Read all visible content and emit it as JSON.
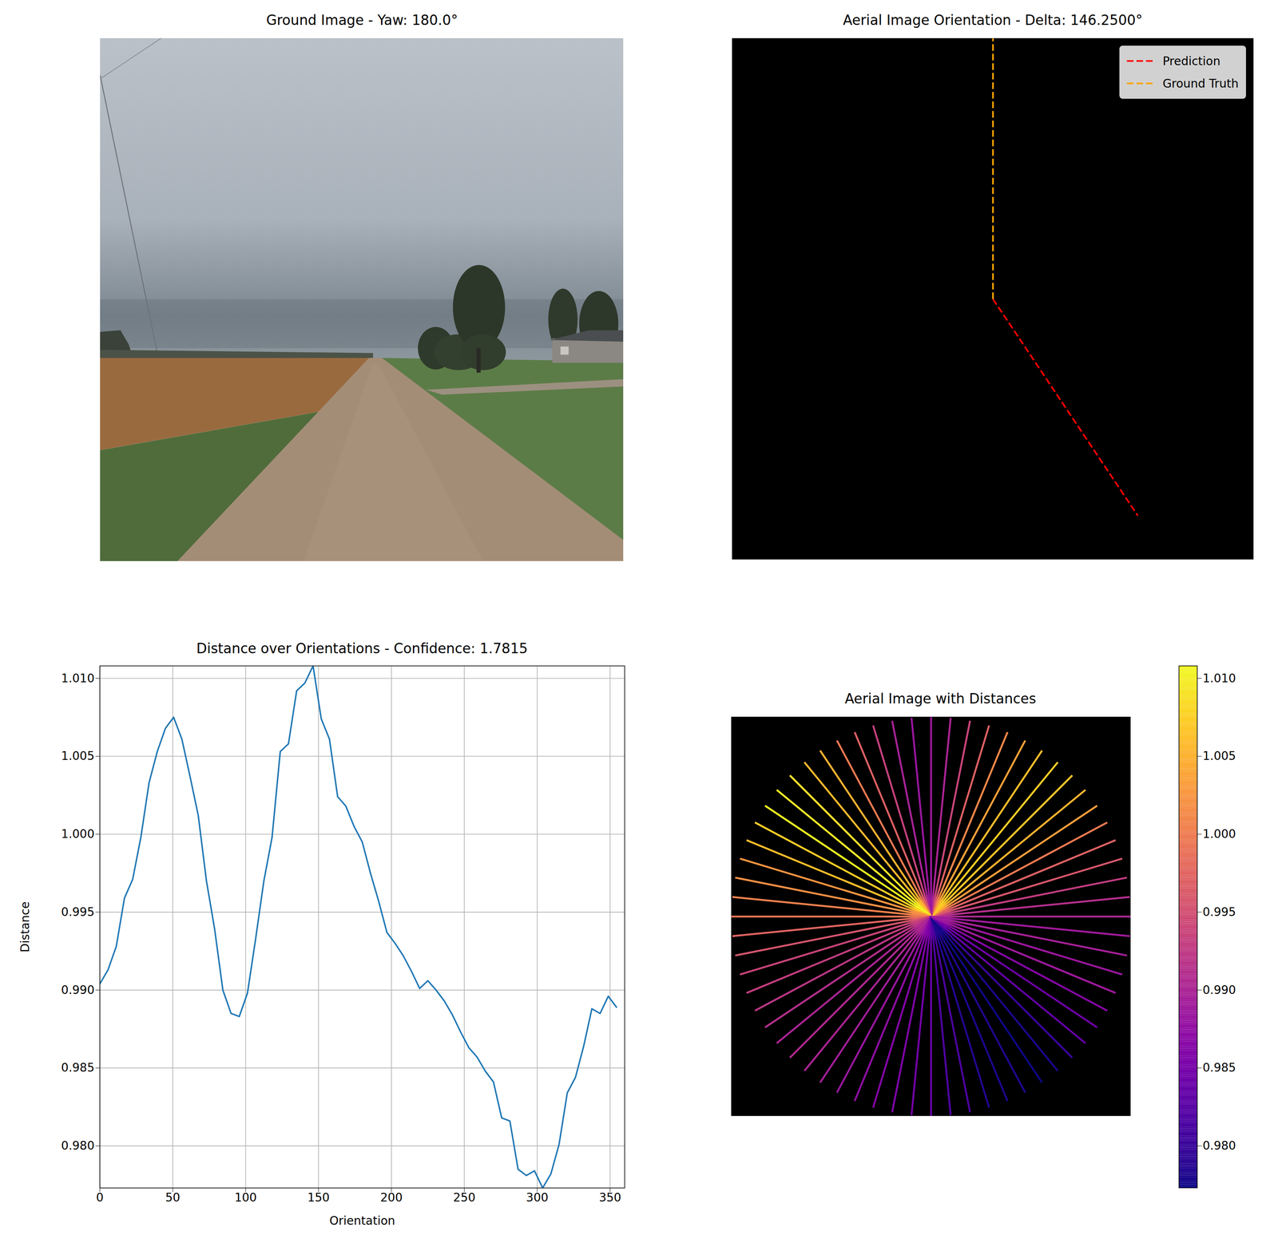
{
  "chart_data": [
    {
      "type": "image",
      "title": "Ground Image - Yaw: 180.0°"
    },
    {
      "type": "orientation",
      "title": "Aerial Image Orientation - Delta: 146.2500°",
      "legend": "upper right",
      "tick_labels": false,
      "series": [
        {
          "name": "Prediction",
          "color": "red",
          "line_style": "dashed",
          "angle": 146.25
        },
        {
          "name": "Ground Truth",
          "color": "orange",
          "line_style": "dashed",
          "angle": 0
        }
      ]
    },
    {
      "type": "line",
      "title": "Distance over Orientations - Confidence: 1.7815",
      "x_label": "Orientation",
      "y_label": "Distance",
      "color": "#1f77b4",
      "grid": true,
      "x": [
        0,
        5.625,
        11.25,
        16.875,
        22.5,
        28.125,
        33.75,
        39.375,
        45,
        50.625,
        56.25,
        61.875,
        67.5,
        73.125,
        78.75,
        84.375,
        90,
        95.625,
        101.25,
        106.875,
        112.5,
        118.125,
        123.75,
        129.375,
        135,
        140.625,
        146.25,
        151.875,
        157.5,
        163.125,
        168.75,
        174.375,
        180,
        185.625,
        191.25,
        196.875,
        202.5,
        208.125,
        213.75,
        219.375,
        225,
        230.625,
        236.25,
        241.875,
        247.5,
        253.125,
        258.75,
        264.375,
        270,
        275.625,
        281.25,
        286.875,
        292.5,
        298.125,
        303.75,
        309.375,
        315,
        320.625,
        326.25,
        331.875,
        337.5,
        343.125,
        348.75,
        354.375
      ],
      "values": [
        0.9904,
        0.9913,
        0.9928,
        0.9959,
        0.9971,
        0.9998,
        1.0033,
        1.0053,
        1.0068,
        1.0075,
        1.0061,
        1.0037,
        1.0012,
        0.997,
        0.9939,
        0.99,
        0.9885,
        0.9883,
        0.9898,
        0.9933,
        0.997,
        0.9998,
        1.0053,
        1.0058,
        1.0092,
        1.0097,
        1.0108,
        1.0074,
        1.0061,
        1.0024,
        1.0018,
        1.0005,
        0.9995,
        0.9975,
        0.9957,
        0.9937,
        0.993,
        0.9922,
        0.9912,
        0.9901,
        0.9906,
        0.99,
        0.9893,
        0.9884,
        0.9873,
        0.9863,
        0.9857,
        0.9848,
        0.9841,
        0.9818,
        0.9816,
        0.9785,
        0.9781,
        0.9784,
        0.9773,
        0.9782,
        0.9801,
        0.9834,
        0.9844,
        0.9864,
        0.9888,
        0.9885,
        0.9896,
        0.9889
      ],
      "xlim": [
        0,
        360
      ],
      "ylim": [
        0.9773,
        1.0108
      ],
      "xticks": [
        0,
        50,
        100,
        150,
        200,
        250,
        300,
        350
      ],
      "yticks": [
        {
          "value": 0.98,
          "label": "0.980"
        },
        0.985,
        {
          "value": 0.99,
          "label": "0.990"
        },
        0.995,
        {
          "value": 1.0,
          "label": "1.000"
        },
        1.005,
        {
          "value": 1.01,
          "label": "1.010"
        }
      ]
    },
    {
      "type": "radial",
      "title": "Aerial Image with Distances",
      "tick_labels": false,
      "x": [
        0,
        5.625,
        11.25,
        16.875,
        22.5,
        28.125,
        33.75,
        39.375,
        45,
        50.625,
        56.25,
        61.875,
        67.5,
        73.125,
        78.75,
        84.375,
        90,
        95.625,
        101.25,
        106.875,
        112.5,
        118.125,
        123.75,
        129.375,
        135,
        140.625,
        146.25,
        151.875,
        157.5,
        163.125,
        168.75,
        174.375,
        180,
        185.625,
        191.25,
        196.875,
        202.5,
        208.125,
        213.75,
        219.375,
        225,
        230.625,
        236.25,
        241.875,
        247.5,
        253.125,
        258.75,
        264.375,
        270,
        275.625,
        281.25,
        286.875,
        292.5,
        298.125,
        303.75,
        309.375,
        315,
        320.625,
        326.25,
        331.875,
        337.5,
        343.125,
        348.75,
        354.375
      ],
      "values": [
        0.9904,
        0.9913,
        0.9928,
        0.9959,
        0.9971,
        0.9998,
        1.0033,
        1.0053,
        1.0068,
        1.0075,
        1.0061,
        1.0037,
        1.0012,
        0.997,
        0.9939,
        0.99,
        0.9885,
        0.9883,
        0.9898,
        0.9933,
        0.997,
        0.9998,
        1.0053,
        1.0058,
        1.0092,
        1.0097,
        1.0108,
        1.0074,
        1.0061,
        1.0024,
        1.0018,
        1.0005,
        0.9995,
        0.9975,
        0.9957,
        0.9937,
        0.993,
        0.9922,
        0.9912,
        0.9901,
        0.9906,
        0.99,
        0.9893,
        0.9884,
        0.9873,
        0.9863,
        0.9857,
        0.9848,
        0.9841,
        0.9818,
        0.9816,
        0.9785,
        0.9781,
        0.9784,
        0.9773,
        0.9782,
        0.9801,
        0.9834,
        0.9844,
        0.9864,
        0.9888,
        0.9885,
        0.9896,
        0.9889
      ],
      "colorbar": {
        "range": [
          0.9773,
          1.0108
        ],
        "ticks": [
          {
            "value": 0.98,
            "label": "0.980"
          },
          0.985,
          {
            "value": 0.99,
            "label": "0.990"
          },
          0.995,
          {
            "value": 1.0,
            "label": "1.000"
          },
          1.005,
          {
            "value": 1.01,
            "label": "1.010"
          }
        ]
      }
    }
  ]
}
